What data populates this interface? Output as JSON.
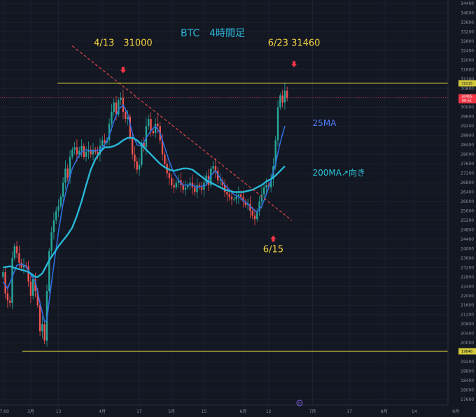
{
  "chart_data": {
    "type": "candlestick",
    "title": "BTC　4時間足",
    "ylim": [
      17600,
      34400
    ],
    "y_ticks": [
      17600,
      18000,
      18400,
      18800,
      19200,
      19600,
      20000,
      20400,
      20800,
      21200,
      21600,
      22000,
      22400,
      22800,
      23200,
      23600,
      24000,
      24400,
      24800,
      25200,
      25600,
      26000,
      26400,
      26800,
      27200,
      27600,
      28000,
      28400,
      28800,
      29200,
      29600,
      30000,
      30400,
      30800,
      31200,
      31600,
      32000,
      32400,
      32800,
      33200,
      33600,
      34000,
      34400
    ],
    "x_ticks": [
      {
        "label": "17:00",
        "x": 0
      },
      {
        "label": "3月",
        "x": 12
      },
      {
        "label": "13",
        "x": 24
      },
      {
        "label": "4月",
        "x": 43
      },
      {
        "label": "17",
        "x": 59
      },
      {
        "label": "5月",
        "x": 73
      },
      {
        "label": "15",
        "x": 87
      },
      {
        "label": "6月",
        "x": 104
      },
      {
        "label": "12",
        "x": 115
      },
      {
        "label": "7月",
        "x": 134
      },
      {
        "label": "17",
        "x": 150
      },
      {
        "label": "8月",
        "x": 165
      },
      {
        "label": "14",
        "x": 178
      },
      {
        "label": "9月",
        "x": 196
      }
    ],
    "series": [
      {
        "kind": "close",
        "values": [
          [
            0,
            23000
          ],
          [
            1,
            22100
          ],
          [
            2,
            21800
          ],
          [
            3,
            21700
          ],
          [
            4,
            23600
          ],
          [
            5,
            24100
          ],
          [
            6,
            23800
          ],
          [
            7,
            23400
          ],
          [
            8,
            23200
          ],
          [
            9,
            23300
          ],
          [
            10,
            23250
          ],
          [
            11,
            22600
          ],
          [
            12,
            22000
          ],
          [
            13,
            22700
          ],
          [
            14,
            22200
          ],
          [
            15,
            21600
          ],
          [
            16,
            20500
          ],
          [
            17,
            20800
          ],
          [
            18,
            20100
          ],
          [
            19,
            22200
          ],
          [
            20,
            23900
          ],
          [
            21,
            24700
          ],
          [
            22,
            25200
          ],
          [
            23,
            25600
          ],
          [
            24,
            25800
          ],
          [
            25,
            26200
          ],
          [
            26,
            26800
          ],
          [
            27,
            27400
          ],
          [
            28,
            27000
          ],
          [
            29,
            27900
          ],
          [
            30,
            28200
          ],
          [
            31,
            28300
          ],
          [
            32,
            28000
          ],
          [
            33,
            28150
          ],
          [
            34,
            28350
          ],
          [
            35,
            27900
          ],
          [
            36,
            28100
          ],
          [
            37,
            28200
          ],
          [
            38,
            28000
          ],
          [
            39,
            28200
          ],
          [
            40,
            28100
          ],
          [
            41,
            28000
          ],
          [
            42,
            28350
          ],
          [
            43,
            28600
          ],
          [
            44,
            28500
          ],
          [
            45,
            28600
          ],
          [
            46,
            29300
          ],
          [
            47,
            29800
          ],
          [
            48,
            30200
          ],
          [
            49,
            29700
          ],
          [
            50,
            30300
          ],
          [
            51,
            30400
          ],
          [
            52,
            29800
          ],
          [
            53,
            29500
          ],
          [
            54,
            29600
          ],
          [
            55,
            28700
          ],
          [
            56,
            28000
          ],
          [
            57,
            27700
          ],
          [
            58,
            27350
          ],
          [
            59,
            27550
          ],
          [
            60,
            28500
          ],
          [
            61,
            28300
          ],
          [
            62,
            29200
          ],
          [
            63,
            29500
          ],
          [
            64,
            29000
          ],
          [
            65,
            28900
          ],
          [
            66,
            29300
          ],
          [
            67,
            29200
          ],
          [
            68,
            28600
          ],
          [
            69,
            28000
          ],
          [
            70,
            27600
          ],
          [
            71,
            27200
          ],
          [
            72,
            27000
          ],
          [
            73,
            26700
          ],
          [
            74,
            26600
          ],
          [
            75,
            26800
          ],
          [
            76,
            26900
          ],
          [
            77,
            26700
          ],
          [
            78,
            26500
          ],
          [
            79,
            26600
          ],
          [
            80,
            26700
          ],
          [
            81,
            26800
          ],
          [
            82,
            26600
          ],
          [
            83,
            26400
          ],
          [
            84,
            26700
          ],
          [
            85,
            26600
          ],
          [
            86,
            26500
          ],
          [
            87,
            26800
          ],
          [
            88,
            27100
          ],
          [
            89,
            26700
          ],
          [
            90,
            27400
          ],
          [
            91,
            27500
          ],
          [
            92,
            27300
          ],
          [
            93,
            26900
          ],
          [
            94,
            26900
          ],
          [
            95,
            26700
          ],
          [
            96,
            26400
          ],
          [
            97,
            26300
          ],
          [
            98,
            26200
          ],
          [
            99,
            26100
          ],
          [
            100,
            26100
          ],
          [
            101,
            26200
          ],
          [
            102,
            26300
          ],
          [
            103,
            26200
          ],
          [
            104,
            26000
          ],
          [
            105,
            25850
          ],
          [
            106,
            25900
          ],
          [
            107,
            25600
          ],
          [
            108,
            25400
          ],
          [
            109,
            25250
          ],
          [
            110,
            25600
          ],
          [
            111,
            26000
          ],
          [
            112,
            26300
          ],
          [
            113,
            26600
          ],
          [
            114,
            26700
          ],
          [
            115,
            26600
          ],
          [
            116,
            26950
          ],
          [
            117,
            27500
          ],
          [
            118,
            28600
          ],
          [
            119,
            30000
          ],
          [
            120,
            30500
          ],
          [
            121,
            30200
          ],
          [
            122,
            30700
          ],
          [
            123,
            30400
          ]
        ]
      },
      {
        "name": "25MA",
        "color": "#2f6fe0",
        "values": [
          [
            0,
            22600
          ],
          [
            2,
            22300
          ],
          [
            4,
            22800
          ],
          [
            6,
            23300
          ],
          [
            8,
            23350
          ],
          [
            10,
            23250
          ],
          [
            12,
            22900
          ],
          [
            14,
            22600
          ],
          [
            16,
            21700
          ],
          [
            18,
            20900
          ],
          [
            19,
            20950
          ],
          [
            20,
            21800
          ],
          [
            22,
            23300
          ],
          [
            24,
            24700
          ],
          [
            26,
            25900
          ],
          [
            28,
            26700
          ],
          [
            30,
            27400
          ],
          [
            32,
            27800
          ],
          [
            34,
            28100
          ],
          [
            36,
            28200
          ],
          [
            38,
            28150
          ],
          [
            40,
            28150
          ],
          [
            42,
            28200
          ],
          [
            44,
            28400
          ],
          [
            46,
            28800
          ],
          [
            48,
            29400
          ],
          [
            50,
            29900
          ],
          [
            52,
            30100
          ],
          [
            54,
            29700
          ],
          [
            56,
            28900
          ],
          [
            58,
            28400
          ],
          [
            60,
            28350
          ],
          [
            62,
            28700
          ],
          [
            64,
            29000
          ],
          [
            66,
            29200
          ],
          [
            68,
            28900
          ],
          [
            70,
            28300
          ],
          [
            72,
            27700
          ],
          [
            74,
            27200
          ],
          [
            76,
            26900
          ],
          [
            78,
            26700
          ],
          [
            80,
            26700
          ],
          [
            82,
            26700
          ],
          [
            84,
            26600
          ],
          [
            86,
            26650
          ],
          [
            88,
            26700
          ],
          [
            90,
            27100
          ],
          [
            92,
            27300
          ],
          [
            94,
            27000
          ],
          [
            96,
            26700
          ],
          [
            98,
            26500
          ],
          [
            100,
            26300
          ],
          [
            102,
            26200
          ],
          [
            104,
            26050
          ],
          [
            106,
            25900
          ],
          [
            108,
            25700
          ],
          [
            110,
            25550
          ],
          [
            112,
            25800
          ],
          [
            114,
            26300
          ],
          [
            116,
            26900
          ],
          [
            118,
            27600
          ],
          [
            120,
            28500
          ],
          [
            122,
            29200
          ]
        ]
      },
      {
        "name": "200MA",
        "color": "#28b7d6",
        "values": [
          [
            0,
            23200
          ],
          [
            3,
            23250
          ],
          [
            6,
            23150
          ],
          [
            8,
            23100
          ],
          [
            10,
            23050
          ],
          [
            12,
            22950
          ],
          [
            14,
            22800
          ],
          [
            15,
            22800
          ],
          [
            17,
            22950
          ],
          [
            20,
            23500
          ],
          [
            24,
            24100
          ],
          [
            28,
            24600
          ],
          [
            30,
            24900
          ],
          [
            32,
            25400
          ],
          [
            34,
            26000
          ],
          [
            36,
            26700
          ],
          [
            38,
            27350
          ],
          [
            40,
            27800
          ],
          [
            42,
            28100
          ],
          [
            44,
            28300
          ],
          [
            46,
            28300
          ],
          [
            48,
            28350
          ],
          [
            50,
            28450
          ],
          [
            52,
            28600
          ],
          [
            54,
            28700
          ],
          [
            56,
            28700
          ],
          [
            58,
            28600
          ],
          [
            60,
            28400
          ],
          [
            62,
            28200
          ],
          [
            64,
            28000
          ],
          [
            66,
            27800
          ],
          [
            68,
            27600
          ],
          [
            70,
            27450
          ],
          [
            72,
            27350
          ],
          [
            74,
            27300
          ],
          [
            76,
            27350
          ],
          [
            78,
            27400
          ],
          [
            80,
            27400
          ],
          [
            82,
            27350
          ],
          [
            84,
            27200
          ],
          [
            86,
            27050
          ],
          [
            88,
            26900
          ],
          [
            90,
            26800
          ],
          [
            92,
            26700
          ],
          [
            94,
            26600
          ],
          [
            96,
            26500
          ],
          [
            98,
            26450
          ],
          [
            100,
            26400
          ],
          [
            102,
            26400
          ],
          [
            104,
            26400
          ],
          [
            106,
            26450
          ],
          [
            108,
            26500
          ],
          [
            110,
            26600
          ],
          [
            112,
            26700
          ],
          [
            114,
            26850
          ],
          [
            116,
            26950
          ],
          [
            118,
            27100
          ],
          [
            120,
            27300
          ],
          [
            122,
            27500
          ]
        ]
      }
    ],
    "trendline": {
      "x1": 30,
      "y1": 32600,
      "x2": 125,
      "y2": 25200,
      "color": "#e04848",
      "style": "dashed"
    },
    "hlines": [
      {
        "y": 31015,
        "color": "#d4c93a",
        "label": "31015"
      },
      {
        "y": 19646,
        "color": "#d4c93a",
        "label": "19646"
      }
    ],
    "price_tags": [
      {
        "y": 30405,
        "label": "30405",
        "sub": "00:51",
        "color": "#f23645"
      }
    ],
    "annotations": [
      {
        "text": "4/13　31000",
        "x": 52,
        "y": 32600,
        "color": "#f5d442"
      },
      {
        "text": "6/23 31460",
        "x": 126,
        "y": 32600,
        "color": "#f5d442"
      },
      {
        "text": "25MA",
        "x": 134,
        "y": 29200,
        "color": "#4f7cff"
      },
      {
        "text": "200MA↗向き",
        "x": 134,
        "y": 27100,
        "color": "#29c5d8"
      },
      {
        "text": "6/15",
        "x": 117,
        "y": 23850,
        "color": "#f5d442"
      }
    ],
    "markers": [
      {
        "x": 52,
        "y": 31500,
        "dir": "down",
        "color": "#f23645"
      },
      {
        "x": 126,
        "y": 31750,
        "dir": "down",
        "color": "#f23645"
      },
      {
        "x": 117,
        "y": 24500,
        "dir": "up",
        "color": "#f23645"
      }
    ]
  },
  "ui": {
    "tv_logo": "tv"
  }
}
